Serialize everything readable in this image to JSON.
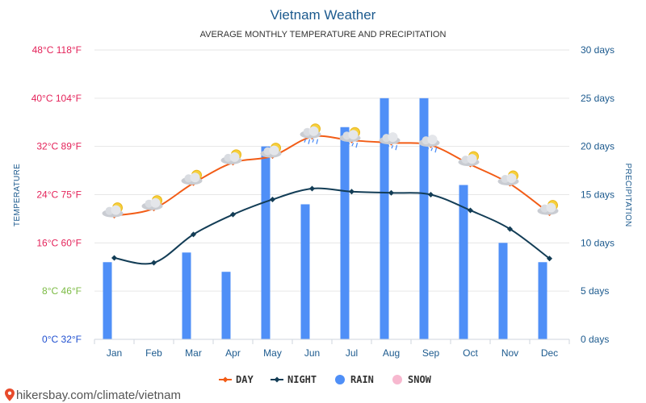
{
  "colors": {
    "day": "#f25c16",
    "night": "#133d56",
    "rain": "#4f8ff7",
    "snow": "#f7b8cf",
    "grid": "#e6e6e6",
    "accent_blue": "#1c5a8e",
    "tick_hot": "#e4235a",
    "tick_mild": "#7cbb44",
    "tick_cold": "#1f4fd0"
  },
  "legend": [
    {
      "key": "day",
      "label": "DAY",
      "icon": "line-diamond-icon"
    },
    {
      "key": "night",
      "label": "NIGHT",
      "icon": "line-diamond-icon"
    },
    {
      "key": "rain",
      "label": "RAIN",
      "icon": "circle-icon"
    },
    {
      "key": "snow",
      "label": "SNOW",
      "icon": "circle-icon"
    }
  ],
  "source": "hikersbay.com/climate/vietnam",
  "chart_data": {
    "type": "line",
    "title": "Vietnam Weather",
    "subtitle": "AVERAGE MONTHLY TEMPERATURE AND PRECIPITATION",
    "ylabel": "TEMPERATURE",
    "ylabel_right": "PRECIPITATION",
    "categories": [
      "Jan",
      "Feb",
      "Mar",
      "Apr",
      "May",
      "Jun",
      "Jul",
      "Aug",
      "Sep",
      "Oct",
      "Nov",
      "Dec"
    ],
    "ylim": [
      0,
      48
    ],
    "ylim_right": [
      0,
      30
    ],
    "y_ticks": [
      {
        "value": 48,
        "label": "48°C 118°F"
      },
      {
        "value": 40,
        "label": "40°C 104°F"
      },
      {
        "value": 32,
        "label": "32°C 89°F"
      },
      {
        "value": 24,
        "label": "24°C 75°F"
      },
      {
        "value": 16,
        "label": "16°C 60°F"
      },
      {
        "value": 8,
        "label": "8°C 46°F"
      },
      {
        "value": 0,
        "label": "0°C 32°F"
      }
    ],
    "y_ticks_right": [
      {
        "value": 30,
        "label": "30 days"
      },
      {
        "value": 25,
        "label": "25 days"
      },
      {
        "value": 20,
        "label": "20 days"
      },
      {
        "value": 15,
        "label": "15 days"
      },
      {
        "value": 10,
        "label": "10 days"
      },
      {
        "value": 5,
        "label": "5 days"
      },
      {
        "value": 0,
        "label": "0 days"
      }
    ],
    "series": [
      {
        "name": "DAY",
        "type": "line",
        "axis": "left",
        "values": [
          20.5,
          21.7,
          25.9,
          29.3,
          30.4,
          33.6,
          33.0,
          32.6,
          32.2,
          29.0,
          25.8,
          20.9
        ]
      },
      {
        "name": "NIGHT",
        "type": "line",
        "axis": "left",
        "values": [
          13.5,
          12.7,
          17.4,
          20.7,
          23.2,
          25.0,
          24.5,
          24.3,
          24.0,
          21.4,
          18.3,
          13.4
        ]
      },
      {
        "name": "RAIN",
        "type": "bar",
        "axis": "right",
        "values": [
          8,
          0,
          9,
          7,
          20,
          14,
          22,
          25,
          25,
          16,
          10,
          8
        ]
      },
      {
        "name": "SNOW",
        "type": "bar",
        "axis": "right",
        "values": [
          0,
          0,
          0,
          0,
          0,
          0,
          0,
          0,
          0,
          0,
          0,
          0
        ]
      }
    ],
    "weather_icons": [
      "partly-cloudy-icon",
      "partly-cloudy-icon",
      "partly-cloudy-icon",
      "partly-cloudy-icon",
      "partly-cloudy-icon",
      "rain-sun-icon",
      "rain-sun-icon",
      "rain-icon",
      "rain-icon",
      "partly-cloudy-icon",
      "partly-cloudy-icon",
      "partly-cloudy-icon"
    ],
    "grid": true,
    "legend_position": "bottom-center"
  }
}
